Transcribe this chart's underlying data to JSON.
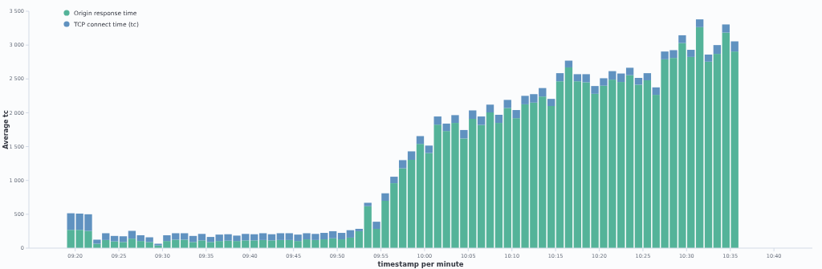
{
  "chart_data": {
    "type": "bar",
    "stacked": true,
    "xlabel": "timestamp per minute",
    "ylabel": "Average tc",
    "legend": "top left",
    "grid": false,
    "x": [
      9.325,
      9.3417,
      9.3583,
      9.375,
      9.3917,
      9.4083,
      9.425,
      9.4417,
      9.4583,
      9.475,
      9.4917,
      9.5083,
      9.525,
      9.5417,
      9.5583,
      9.575,
      9.5917,
      9.6083,
      9.625,
      9.6417,
      9.6583,
      9.675,
      9.6917,
      9.7083,
      9.725,
      9.7417,
      9.7583,
      9.775,
      9.7917,
      9.8083,
      9.825,
      9.8417,
      9.8583,
      9.875,
      9.8917,
      9.9083,
      9.925,
      9.9417,
      9.9583,
      9.975,
      9.9917,
      10.0083,
      10.025,
      10.0417,
      10.0583,
      10.075,
      10.0917,
      10.1083,
      10.125,
      10.1417,
      10.1583,
      10.175,
      10.1917,
      10.2083,
      10.225,
      10.2417,
      10.2583,
      10.275,
      10.2917,
      10.3083,
      10.325,
      10.3417,
      10.3583,
      10.375,
      10.3917,
      10.4083,
      10.425,
      10.4417,
      10.4583,
      10.475,
      10.4917,
      10.5083,
      10.525,
      10.5417,
      10.5583,
      10.575,
      10.5917
    ],
    "xlim": [
      9.245,
      10.74
    ],
    "xticks": [
      {
        "value": 9.3333,
        "label": "09:20"
      },
      {
        "value": 9.4167,
        "label": "09:25"
      },
      {
        "value": 9.5,
        "label": "09:30"
      },
      {
        "value": 9.5833,
        "label": "09:35"
      },
      {
        "value": 9.6667,
        "label": "09:40"
      },
      {
        "value": 9.75,
        "label": "09:45"
      },
      {
        "value": 9.8333,
        "label": "09:50"
      },
      {
        "value": 9.9167,
        "label": "09:55"
      },
      {
        "value": 10,
        "label": "10:00"
      },
      {
        "value": 10.0833,
        "label": "10:05"
      },
      {
        "value": 10.1667,
        "label": "10:10"
      },
      {
        "value": 10.25,
        "label": "10:15"
      },
      {
        "value": 10.3333,
        "label": "10:20"
      },
      {
        "value": 10.4167,
        "label": "10:25"
      },
      {
        "value": 10.5,
        "label": "10:30"
      },
      {
        "value": 10.5833,
        "label": "10:35"
      },
      {
        "value": 10.6667,
        "label": "10:40"
      }
    ],
    "ylim": [
      0,
      3500
    ],
    "yticks": [
      0,
      500,
      {
        "value": 1000,
        "label": "1 000"
      },
      {
        "value": 1500,
        "label": "1 500"
      },
      {
        "value": 2000,
        "label": "2 000"
      },
      {
        "value": 2500,
        "label": "2 500"
      },
      {
        "value": 3000,
        "label": "3 000"
      },
      {
        "value": 3500,
        "label": "3 500"
      }
    ],
    "series": [
      {
        "name": "Origin response time",
        "color": "#54b399",
        "values": [
          270,
          270,
          255,
          65,
          120,
          100,
          90,
          140,
          105,
          90,
          40,
          105,
          125,
          125,
          90,
          115,
          90,
          105,
          110,
          105,
          115,
          115,
          120,
          115,
          120,
          120,
          105,
          130,
          120,
          130,
          145,
          130,
          155,
          250,
          620,
          285,
          700,
          960,
          1180,
          1305,
          1540,
          1405,
          1825,
          1730,
          1850,
          1620,
          1910,
          1820,
          2005,
          1850,
          2070,
          1920,
          2125,
          2150,
          2240,
          2100,
          2465,
          2670,
          2465,
          2450,
          2280,
          2400,
          2490,
          2455,
          2555,
          2415,
          2480,
          2265,
          2790,
          2810,
          3030,
          2825,
          3265,
          2755,
          2870,
          3185,
          2905
        ]
      },
      {
        "name": "TCP connect time (tc)",
        "color": "#6092c0",
        "values": [
          245,
          240,
          245,
          60,
          100,
          80,
          85,
          115,
          85,
          70,
          25,
          85,
          95,
          95,
          90,
          95,
          75,
          95,
          95,
          80,
          95,
          90,
          100,
          90,
          100,
          100,
          95,
          90,
          90,
          95,
          105,
          95,
          110,
          35,
          50,
          105,
          110,
          95,
          120,
          125,
          115,
          110,
          120,
          110,
          115,
          125,
          125,
          125,
          115,
          120,
          120,
          120,
          125,
          125,
          125,
          105,
          120,
          100,
          105,
          120,
          115,
          110,
          125,
          125,
          110,
          100,
          105,
          110,
          115,
          115,
          115,
          105,
          115,
          105,
          130,
          120,
          150
        ]
      }
    ]
  }
}
